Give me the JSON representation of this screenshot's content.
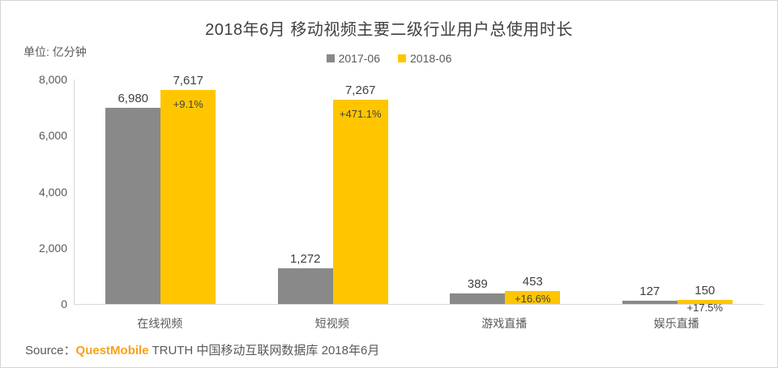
{
  "title": "2018年6月 移动视频主要二级行业用户总使用时长",
  "unit_label": "单位: 亿分钟",
  "source": {
    "prefix": "Source：",
    "brand": "QuestMobile",
    "rest": " TRUTH 中国移动互联网数据库 2018年6月",
    "brand_color": "#f7a11c"
  },
  "colors": {
    "series_2017": "#898989",
    "series_2018": "#ffc600",
    "axis_line": "#d9d9d9",
    "text_dark": "#404040",
    "text_gray": "#595959"
  },
  "chart_data": {
    "type": "bar",
    "title": "2018年6月 移动视频主要二级行业用户总使用时长",
    "ylabel": "单位: 亿分钟",
    "categories": [
      "在线视频",
      "短视频",
      "游戏直播",
      "娱乐直播"
    ],
    "series": [
      {
        "name": "2017-06",
        "color": "#898989",
        "values": [
          6980,
          1272,
          389,
          127
        ],
        "labels": [
          "6,980",
          "1,272",
          "389",
          "127"
        ]
      },
      {
        "name": "2018-06",
        "color": "#ffc600",
        "values": [
          7617,
          7267,
          453,
          150
        ],
        "labels": [
          "7,617",
          "7,267",
          "453",
          "150"
        ],
        "growth_labels": [
          "+9.1%",
          "+471.1%",
          "+16.6%",
          "+17.5%"
        ]
      }
    ],
    "ylim": [
      0,
      8000
    ],
    "yticks": [
      0,
      2000,
      4000,
      6000,
      8000
    ],
    "ytick_labels": [
      "0",
      "2,000",
      "4,000",
      "6,000",
      "8,000"
    ],
    "grid": false,
    "legend_position": "top-center"
  }
}
